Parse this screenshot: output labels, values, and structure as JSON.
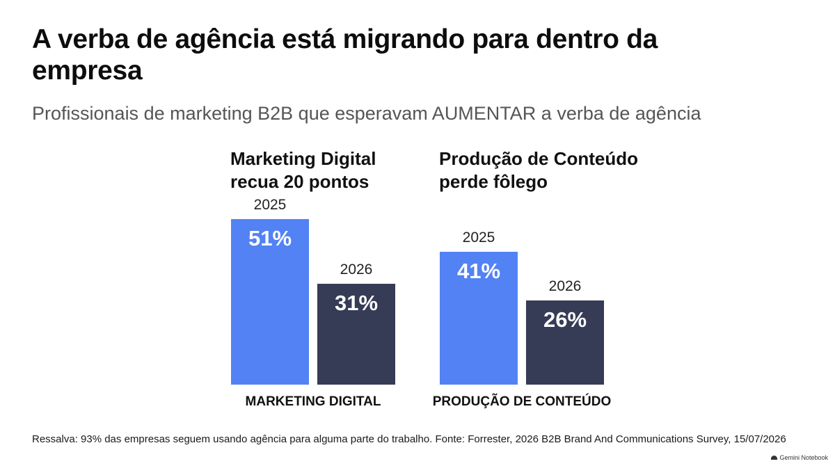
{
  "header": {
    "title": "A verba de agência está migrando para dentro da empresa",
    "subtitle": "Profissionais de marketing B2B que esperavam AUMENTAR a verba de agência"
  },
  "chart_data": {
    "type": "bar",
    "title": "A verba de agência está migrando para dentro da empresa",
    "subtitle": "Profissionais de marketing B2B que esperavam AUMENTAR a verba de agência",
    "unit": "%",
    "ylim": [
      0,
      51
    ],
    "grid": false,
    "legend": "none",
    "groups": [
      {
        "heading": "Marketing Digital\nrecua 20 pontos",
        "category": "MARKETING DIGITAL",
        "bars": [
          {
            "year": "2025",
            "value": 51,
            "label": "51%",
            "color": "#5282f4"
          },
          {
            "year": "2026",
            "value": 31,
            "label": "31%",
            "color": "#363b56"
          }
        ]
      },
      {
        "heading": "Produção de Conteúdo\nperde fôlego",
        "category": "PRODUÇÃO DE CONTEÚDO",
        "bars": [
          {
            "year": "2025",
            "value": 41,
            "label": "41%",
            "color": "#5282f4"
          },
          {
            "year": "2026",
            "value": 26,
            "label": "26%",
            "color": "#363b56"
          }
        ]
      }
    ]
  },
  "footer": {
    "note": "Ressalva: 93% das empresas seguem usando agência para alguma parte do trabalho. Fonte: Forrester, 2026 B2B Brand And Communications Survey, 15/07/2026",
    "watermark": "Gemini Notebook"
  },
  "colors": {
    "bar_2025": "#5282f4",
    "bar_2026": "#363b56"
  }
}
